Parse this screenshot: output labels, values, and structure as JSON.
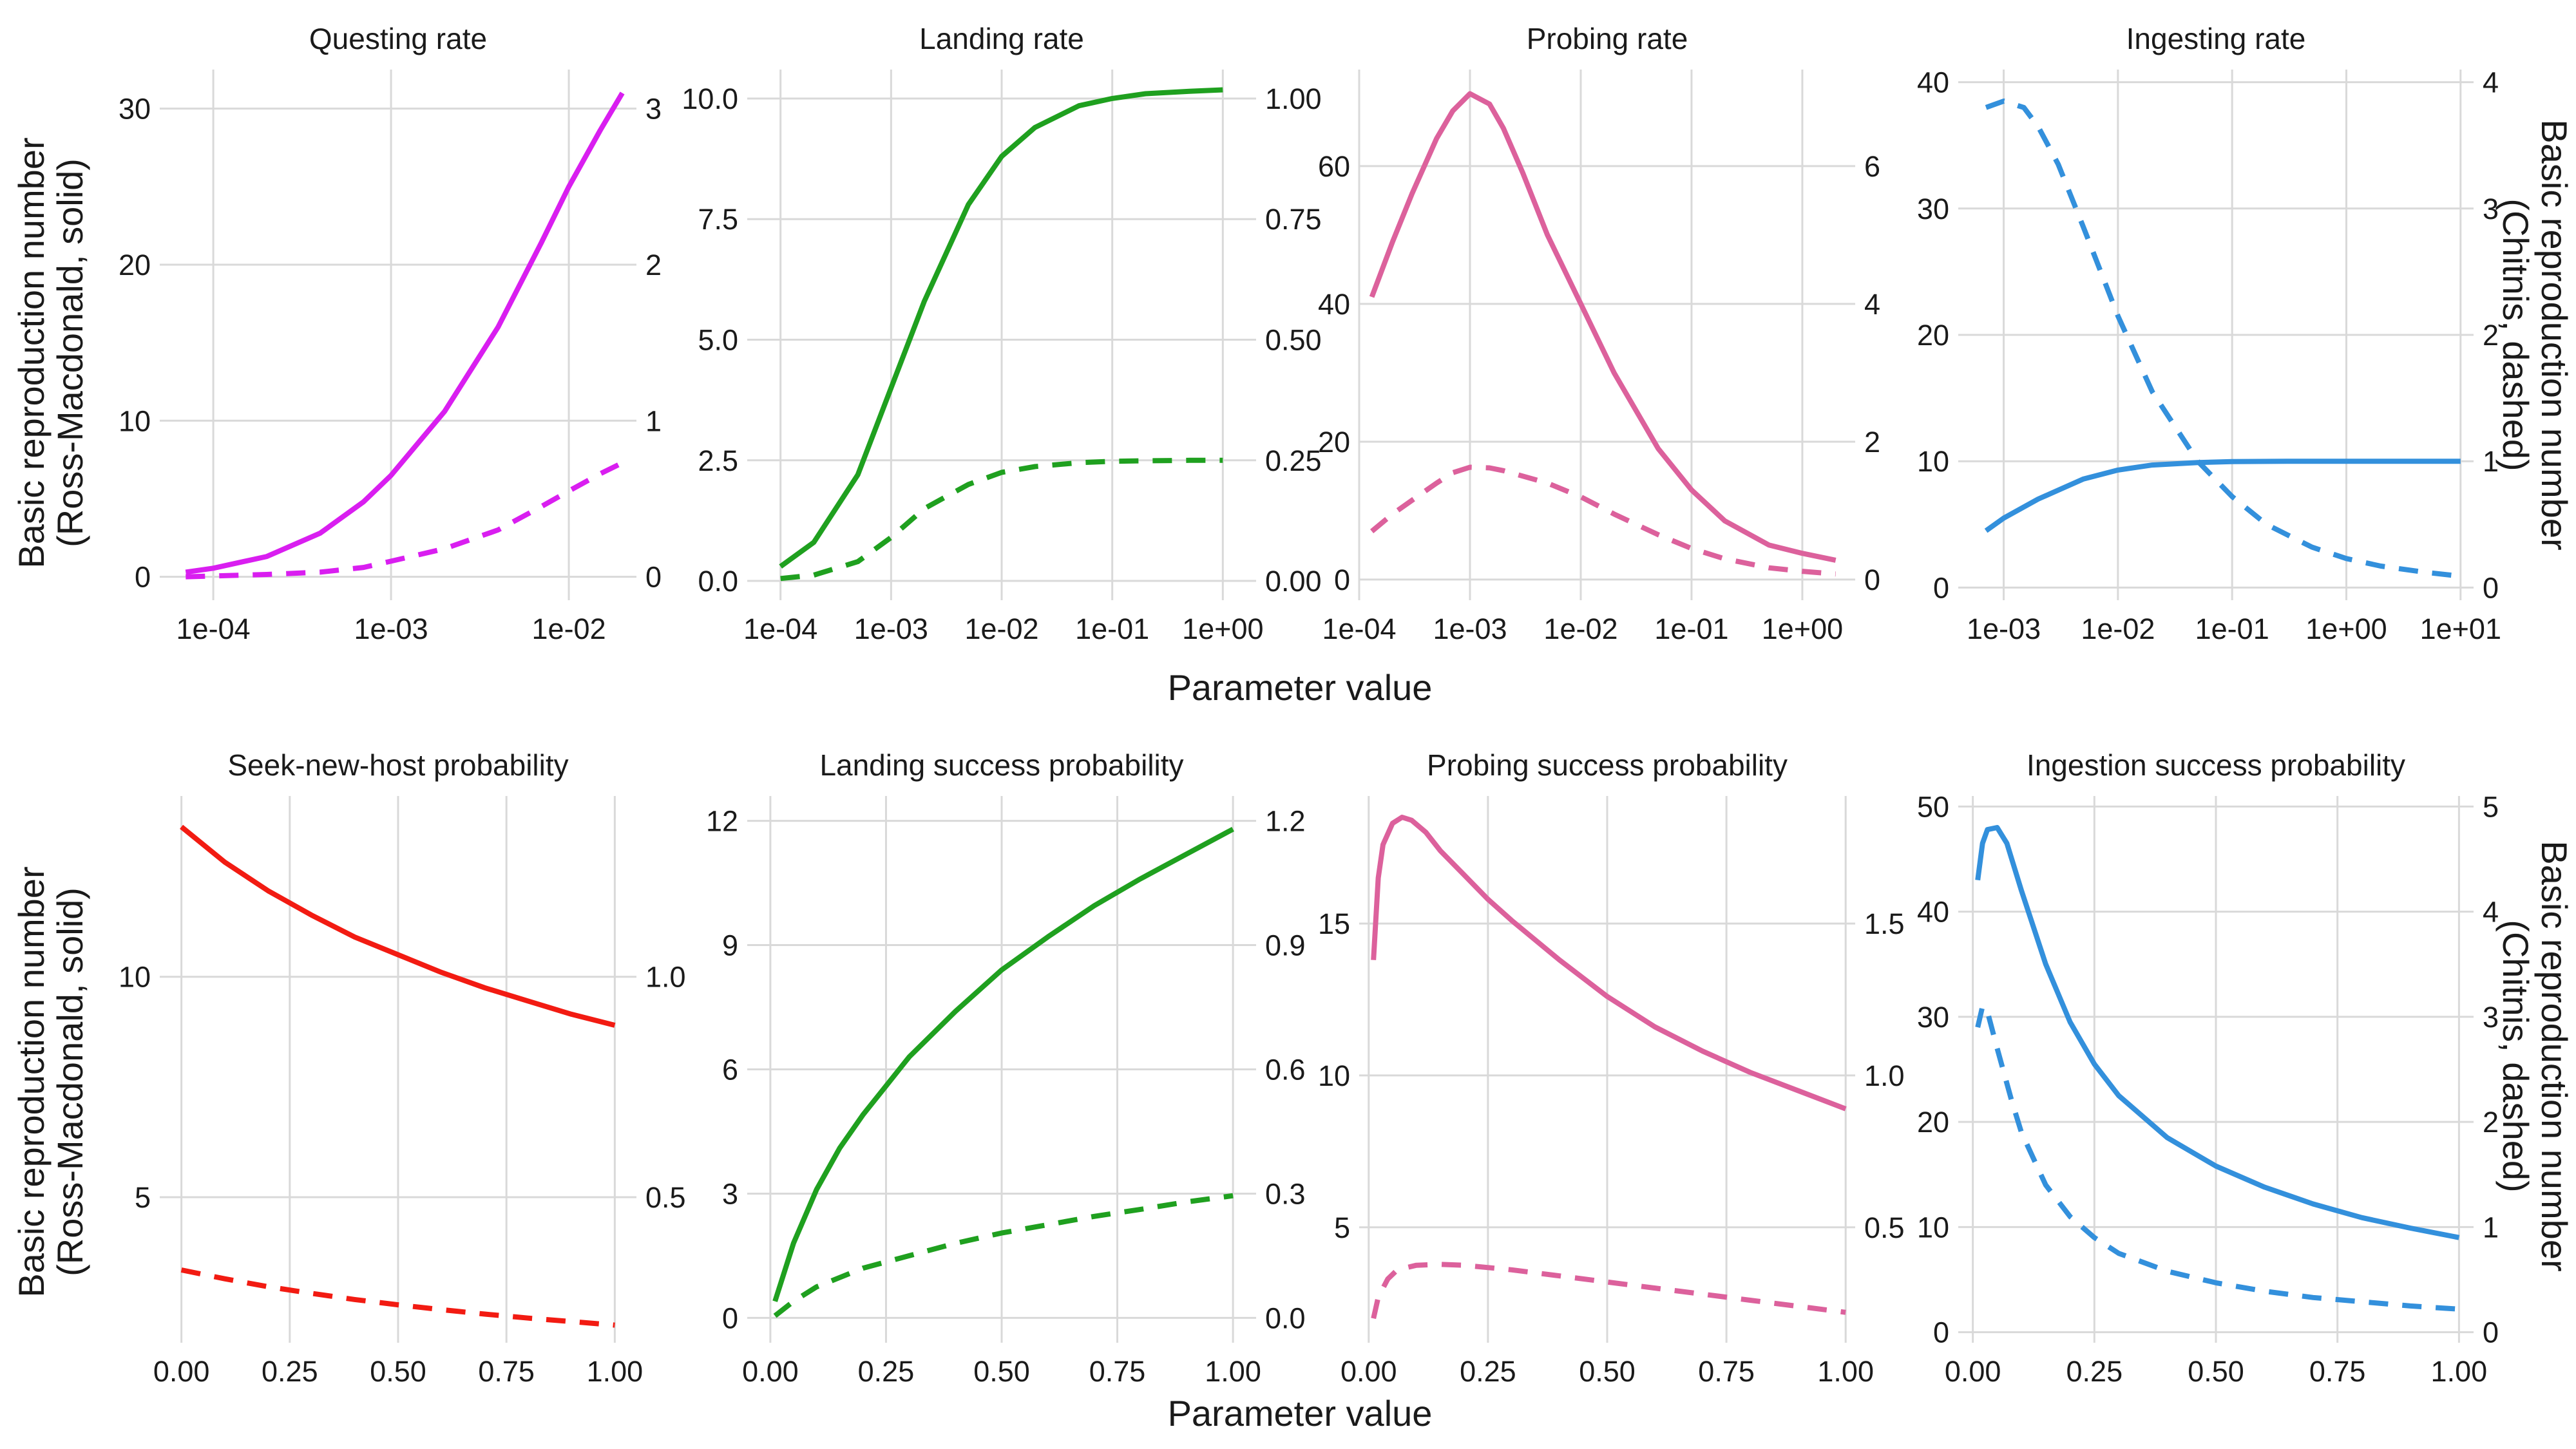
{
  "figure": {
    "x_label": "Parameter value",
    "left_y_label": [
      "Basic reproduction number",
      "(Ross-Macdonald, solid)"
    ],
    "right_y_label": [
      "Basic reproduction number",
      "(Chitnis, dashed)"
    ]
  },
  "chart_data": [
    {
      "type": "line",
      "title": "Questing rate",
      "color": "#d91ef0",
      "x_scale": "log",
      "x_range": [
        5e-05,
        0.024
      ],
      "x_ticks": [
        0.0001,
        0.001,
        0.01
      ],
      "x_tick_labels": [
        "1e-04",
        "1e-03",
        "1e-02"
      ],
      "y_left": {
        "range": [
          -1.5,
          32.5
        ],
        "ticks": [
          0,
          10,
          20,
          30
        ],
        "tick_labels": [
          "0",
          "10",
          "20",
          "30"
        ]
      },
      "y_right": {
        "range": [
          -0.15,
          3.25
        ],
        "ticks": [
          0,
          1,
          2,
          3
        ],
        "tick_labels": [
          "0",
          "1",
          "2",
          "3"
        ]
      },
      "series": [
        {
          "style": "solid",
          "axis": "left",
          "x": [
            7e-05,
            0.0001,
            0.0002,
            0.0004,
            0.0007,
            0.001,
            0.002,
            0.004,
            0.007,
            0.01,
            0.015,
            0.02
          ],
          "y": [
            0.3,
            0.55,
            1.3,
            2.8,
            4.8,
            6.5,
            10.6,
            16.0,
            21.4,
            25.0,
            28.6,
            31.0
          ]
        },
        {
          "style": "dashed",
          "axis": "right",
          "x": [
            7e-05,
            0.0001,
            0.0002,
            0.0004,
            0.0007,
            0.001,
            0.002,
            0.004,
            0.007,
            0.01,
            0.015,
            0.02
          ],
          "y": [
            0.0,
            0.005,
            0.015,
            0.03,
            0.06,
            0.1,
            0.18,
            0.3,
            0.45,
            0.55,
            0.66,
            0.73
          ]
        }
      ]
    },
    {
      "type": "line",
      "title": "Landing rate",
      "color": "#1fa01f",
      "x_scale": "log",
      "x_range": [
        5e-05,
        2
      ],
      "x_ticks": [
        0.0001,
        0.001,
        0.01,
        0.1,
        1
      ],
      "x_tick_labels": [
        "1e-04",
        "1e-03",
        "1e-02",
        "1e-01",
        "1e+00"
      ],
      "y_left": {
        "range": [
          -0.4,
          10.6
        ],
        "ticks": [
          0,
          2.5,
          5,
          7.5,
          10
        ],
        "tick_labels": [
          "0.0",
          "2.5",
          "5.0",
          "7.5",
          "10.0"
        ]
      },
      "y_right": {
        "range": [
          -0.04,
          1.06
        ],
        "ticks": [
          0,
          0.25,
          0.5,
          0.75,
          1
        ],
        "tick_labels": [
          "0.00",
          "0.25",
          "0.50",
          "0.75",
          "1.00"
        ]
      },
      "series": [
        {
          "style": "solid",
          "axis": "left",
          "x": [
            0.0001,
            0.0002,
            0.0005,
            0.001,
            0.002,
            0.005,
            0.01,
            0.02,
            0.05,
            0.1,
            0.2,
            0.5,
            1.0
          ],
          "y": [
            0.3,
            0.8,
            2.2,
            4.0,
            5.8,
            7.8,
            8.8,
            9.4,
            9.85,
            10.0,
            10.1,
            10.15,
            10.18
          ]
        },
        {
          "style": "dashed",
          "axis": "right",
          "x": [
            0.0001,
            0.0002,
            0.0005,
            0.001,
            0.002,
            0.005,
            0.01,
            0.02,
            0.05,
            0.1,
            0.2,
            0.5,
            1.0
          ],
          "y": [
            0.005,
            0.012,
            0.04,
            0.09,
            0.15,
            0.2,
            0.225,
            0.237,
            0.245,
            0.248,
            0.249,
            0.25,
            0.25
          ]
        }
      ]
    },
    {
      "type": "line",
      "title": "Probing rate",
      "color": "#dc619c",
      "x_scale": "log",
      "x_range": [
        0.0001,
        3
      ],
      "x_ticks": [
        0.0001,
        0.001,
        0.01,
        0.1,
        1
      ],
      "x_tick_labels": [
        "1e-04",
        "1e-03",
        "1e-02",
        "1e-01",
        "1e+00"
      ],
      "y_left": {
        "range": [
          -3,
          74
        ],
        "ticks": [
          0,
          20,
          40,
          60
        ],
        "tick_labels": [
          "0",
          "20",
          "40",
          "60"
        ]
      },
      "y_right": {
        "range": [
          -0.3,
          7.4
        ],
        "ticks": [
          0,
          2,
          4,
          6
        ],
        "tick_labels": [
          "0",
          "2",
          "4",
          "6"
        ]
      },
      "series": [
        {
          "style": "solid",
          "axis": "left",
          "x": [
            0.00013,
            0.0002,
            0.0003,
            0.0005,
            0.0007,
            0.001,
            0.0015,
            0.002,
            0.003,
            0.005,
            0.01,
            0.02,
            0.05,
            0.1,
            0.2,
            0.5,
            1.0,
            2.0
          ],
          "y": [
            41,
            49,
            56,
            64,
            68,
            70.5,
            69,
            65.5,
            59,
            50,
            40,
            30,
            19,
            13,
            8.5,
            5.0,
            3.8,
            2.8
          ]
        },
        {
          "style": "dashed",
          "axis": "right",
          "x": [
            0.00013,
            0.0002,
            0.0003,
            0.0005,
            0.0007,
            0.001,
            0.0015,
            0.002,
            0.005,
            0.01,
            0.02,
            0.05,
            0.1,
            0.2,
            0.5,
            1.0,
            2.0
          ],
          "y": [
            0.7,
            0.95,
            1.15,
            1.4,
            1.55,
            1.63,
            1.62,
            1.58,
            1.4,
            1.2,
            0.95,
            0.65,
            0.45,
            0.3,
            0.17,
            0.12,
            0.08
          ]
        }
      ]
    },
    {
      "type": "line",
      "title": "Ingesting rate",
      "color": "#3390dc",
      "x_scale": "log",
      "x_range": [
        0.0004,
        13
      ],
      "x_ticks": [
        0.001,
        0.01,
        0.1,
        1,
        10
      ],
      "x_tick_labels": [
        "1e-03",
        "1e-02",
        "1e-01",
        "1e+00",
        "1e+01"
      ],
      "y_left": {
        "range": [
          -1,
          41
        ],
        "ticks": [
          0,
          10,
          20,
          30,
          40
        ],
        "tick_labels": [
          "0",
          "10",
          "20",
          "30",
          "40"
        ]
      },
      "y_right": {
        "range": [
          -0.1,
          4.1
        ],
        "ticks": [
          0,
          1,
          2,
          3,
          4
        ],
        "tick_labels": [
          "0",
          "1",
          "2",
          "3",
          "4"
        ]
      },
      "series": [
        {
          "style": "solid",
          "axis": "left",
          "x": [
            0.0007,
            0.001,
            0.002,
            0.005,
            0.01,
            0.02,
            0.05,
            0.1,
            0.3,
            1,
            3,
            10
          ],
          "y": [
            4.5,
            5.5,
            7.0,
            8.6,
            9.3,
            9.7,
            9.9,
            9.97,
            10,
            10,
            10,
            10
          ]
        },
        {
          "style": "dashed",
          "axis": "right",
          "x": [
            0.0007,
            0.001,
            0.0015,
            0.002,
            0.003,
            0.005,
            0.01,
            0.02,
            0.05,
            0.1,
            0.2,
            0.5,
            1,
            2,
            5,
            10
          ],
          "y": [
            3.8,
            3.85,
            3.8,
            3.65,
            3.35,
            2.85,
            2.15,
            1.55,
            1.0,
            0.72,
            0.5,
            0.32,
            0.23,
            0.17,
            0.12,
            0.09
          ]
        }
      ]
    },
    {
      "type": "line",
      "title": "Seek-new-host probability",
      "color": "#f21b12",
      "x_scale": "linear",
      "x_range": [
        -0.05,
        1.05
      ],
      "x_ticks": [
        0,
        0.25,
        0.5,
        0.75,
        1
      ],
      "x_tick_labels": [
        "0.00",
        "0.25",
        "0.50",
        "0.75",
        "1.00"
      ],
      "y_left": {
        "range": [
          1.7,
          14.1
        ],
        "ticks": [
          5,
          10
        ],
        "tick_labels": [
          "5",
          "10"
        ]
      },
      "y_right": {
        "range": [
          0.17,
          1.41
        ],
        "ticks": [
          0.5,
          1.0
        ],
        "tick_labels": [
          "0.5",
          "1.0"
        ]
      },
      "series": [
        {
          "style": "solid",
          "axis": "left",
          "x": [
            0,
            0.1,
            0.2,
            0.3,
            0.4,
            0.5,
            0.6,
            0.7,
            0.8,
            0.9,
            1.0
          ],
          "y": [
            13.4,
            12.6,
            11.95,
            11.4,
            10.9,
            10.5,
            10.1,
            9.75,
            9.45,
            9.15,
            8.9
          ]
        },
        {
          "style": "dashed",
          "axis": "right",
          "x": [
            0,
            0.1,
            0.2,
            0.3,
            0.4,
            0.5,
            0.6,
            0.7,
            0.8,
            0.9,
            1.0
          ],
          "y": [
            0.335,
            0.315,
            0.297,
            0.282,
            0.268,
            0.256,
            0.245,
            0.235,
            0.226,
            0.218,
            0.21
          ]
        }
      ]
    },
    {
      "type": "line",
      "title": "Landing success probability",
      "color": "#1fa01f",
      "x_scale": "linear",
      "x_range": [
        -0.05,
        1.05
      ],
      "x_ticks": [
        0,
        0.25,
        0.5,
        0.75,
        1
      ],
      "x_tick_labels": [
        "0.00",
        "0.25",
        "0.50",
        "0.75",
        "1.00"
      ],
      "y_left": {
        "range": [
          -0.6,
          12.6
        ],
        "ticks": [
          0,
          3,
          6,
          9,
          12
        ],
        "tick_labels": [
          "0",
          "3",
          "6",
          "9",
          "12"
        ]
      },
      "y_right": {
        "range": [
          -0.06,
          1.26
        ],
        "ticks": [
          0,
          0.3,
          0.6,
          0.9,
          1.2
        ],
        "tick_labels": [
          "0.0",
          "0.3",
          "0.6",
          "0.9",
          "1.2"
        ]
      },
      "series": [
        {
          "style": "solid",
          "axis": "left",
          "x": [
            0.01,
            0.05,
            0.1,
            0.15,
            0.2,
            0.25,
            0.3,
            0.4,
            0.5,
            0.6,
            0.7,
            0.8,
            0.9,
            1.0
          ],
          "y": [
            0.4,
            1.8,
            3.1,
            4.1,
            4.9,
            5.6,
            6.3,
            7.4,
            8.4,
            9.2,
            9.95,
            10.6,
            11.2,
            11.8
          ]
        },
        {
          "style": "dashed",
          "axis": "right",
          "x": [
            0.01,
            0.05,
            0.1,
            0.2,
            0.3,
            0.4,
            0.5,
            0.6,
            0.7,
            0.8,
            0.9,
            1.0
          ],
          "y": [
            0.005,
            0.04,
            0.075,
            0.12,
            0.15,
            0.18,
            0.205,
            0.225,
            0.245,
            0.262,
            0.28,
            0.295
          ]
        }
      ]
    },
    {
      "type": "line",
      "title": "Probing success probability",
      "color": "#dc619c",
      "x_scale": "linear",
      "x_range": [
        -0.02,
        1.02
      ],
      "x_ticks": [
        0,
        0.25,
        0.5,
        0.75,
        1
      ],
      "x_tick_labels": [
        "0.00",
        "0.25",
        "0.50",
        "0.75",
        "1.00"
      ],
      "y_left": {
        "range": [
          1.2,
          19.2
        ],
        "ticks": [
          5,
          10,
          15
        ],
        "tick_labels": [
          "5",
          "10",
          "15"
        ]
      },
      "y_right": {
        "range": [
          0.12,
          1.92
        ],
        "ticks": [
          0.5,
          1.0,
          1.5
        ],
        "tick_labels": [
          "0.5",
          "1.0",
          "1.5"
        ]
      },
      "series": [
        {
          "style": "solid",
          "axis": "left",
          "x": [
            0.01,
            0.02,
            0.03,
            0.05,
            0.07,
            0.09,
            0.12,
            0.15,
            0.2,
            0.25,
            0.3,
            0.4,
            0.5,
            0.6,
            0.7,
            0.8,
            0.9,
            1.0
          ],
          "y": [
            13.8,
            16.5,
            17.6,
            18.3,
            18.5,
            18.4,
            18.0,
            17.4,
            16.6,
            15.8,
            15.1,
            13.8,
            12.6,
            11.6,
            10.8,
            10.1,
            9.5,
            8.9
          ]
        },
        {
          "style": "dashed",
          "axis": "right",
          "x": [
            0.01,
            0.02,
            0.04,
            0.06,
            0.1,
            0.15,
            0.2,
            0.3,
            0.4,
            0.5,
            0.6,
            0.7,
            0.8,
            0.9,
            1.0
          ],
          "y": [
            0.2,
            0.27,
            0.33,
            0.36,
            0.375,
            0.378,
            0.375,
            0.36,
            0.34,
            0.32,
            0.3,
            0.28,
            0.26,
            0.24,
            0.22
          ]
        }
      ]
    },
    {
      "type": "line",
      "title": "Ingestion success probability",
      "color": "#3390dc",
      "x_scale": "linear",
      "x_range": [
        -0.03,
        1.03
      ],
      "x_ticks": [
        0,
        0.25,
        0.5,
        0.75,
        1
      ],
      "x_tick_labels": [
        "0.00",
        "0.25",
        "0.50",
        "0.75",
        "1.00"
      ],
      "y_left": {
        "range": [
          -1,
          51
        ],
        "ticks": [
          0,
          10,
          20,
          30,
          40,
          50
        ],
        "tick_labels": [
          "0",
          "10",
          "20",
          "30",
          "40",
          "50"
        ]
      },
      "y_right": {
        "range": [
          -0.1,
          5.1
        ],
        "ticks": [
          0,
          1,
          2,
          3,
          4,
          5
        ],
        "tick_labels": [
          "0",
          "1",
          "2",
          "3",
          "4",
          "5"
        ]
      },
      "series": [
        {
          "style": "solid",
          "axis": "left",
          "x": [
            0.01,
            0.02,
            0.03,
            0.05,
            0.07,
            0.1,
            0.15,
            0.2,
            0.25,
            0.3,
            0.4,
            0.5,
            0.6,
            0.7,
            0.8,
            0.9,
            1.0
          ],
          "y": [
            43,
            46.5,
            47.8,
            48,
            46.5,
            42,
            35,
            29.5,
            25.5,
            22.5,
            18.5,
            15.8,
            13.8,
            12.2,
            10.9,
            9.9,
            9.0
          ]
        },
        {
          "style": "dashed",
          "axis": "right",
          "x": [
            0.01,
            0.02,
            0.03,
            0.05,
            0.08,
            0.1,
            0.15,
            0.2,
            0.25,
            0.3,
            0.4,
            0.5,
            0.6,
            0.7,
            0.8,
            0.9,
            1.0
          ],
          "y": [
            2.9,
            3.1,
            3.05,
            2.7,
            2.2,
            1.9,
            1.4,
            1.1,
            0.9,
            0.75,
            0.58,
            0.47,
            0.39,
            0.33,
            0.29,
            0.25,
            0.22
          ]
        }
      ]
    }
  ]
}
